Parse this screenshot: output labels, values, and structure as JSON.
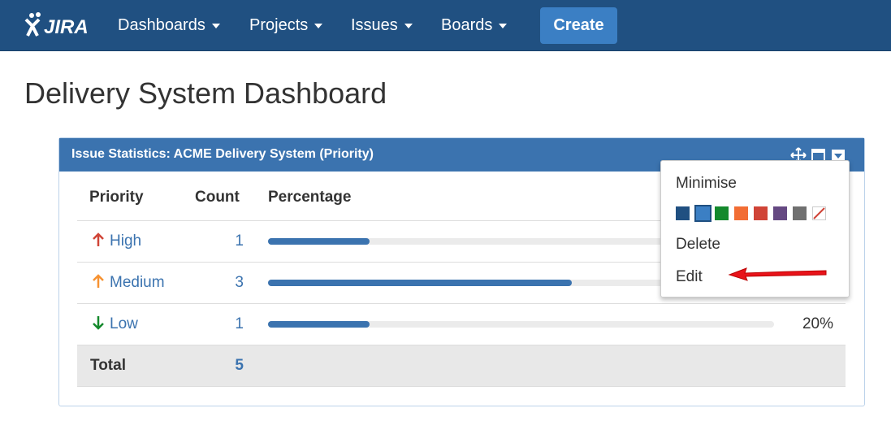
{
  "nav": {
    "logo": "JIRA",
    "items": [
      "Dashboards",
      "Projects",
      "Issues",
      "Boards"
    ],
    "create": "Create"
  },
  "page": {
    "title": "Delivery System Dashboard"
  },
  "gadget": {
    "title": "Issue Statistics: ACME Delivery System (Priority)",
    "table": {
      "headers": [
        "Priority",
        "Count",
        "Percentage"
      ],
      "rows": [
        {
          "priority": "High",
          "count": 1
        },
        {
          "priority": "Medium",
          "count": 3
        },
        {
          "priority": "Low",
          "count": 1,
          "percent_label": "20%"
        }
      ],
      "total_label": "Total",
      "total": 5
    }
  },
  "menu": {
    "items": [
      "Minimise",
      "Delete",
      "Edit"
    ]
  }
}
